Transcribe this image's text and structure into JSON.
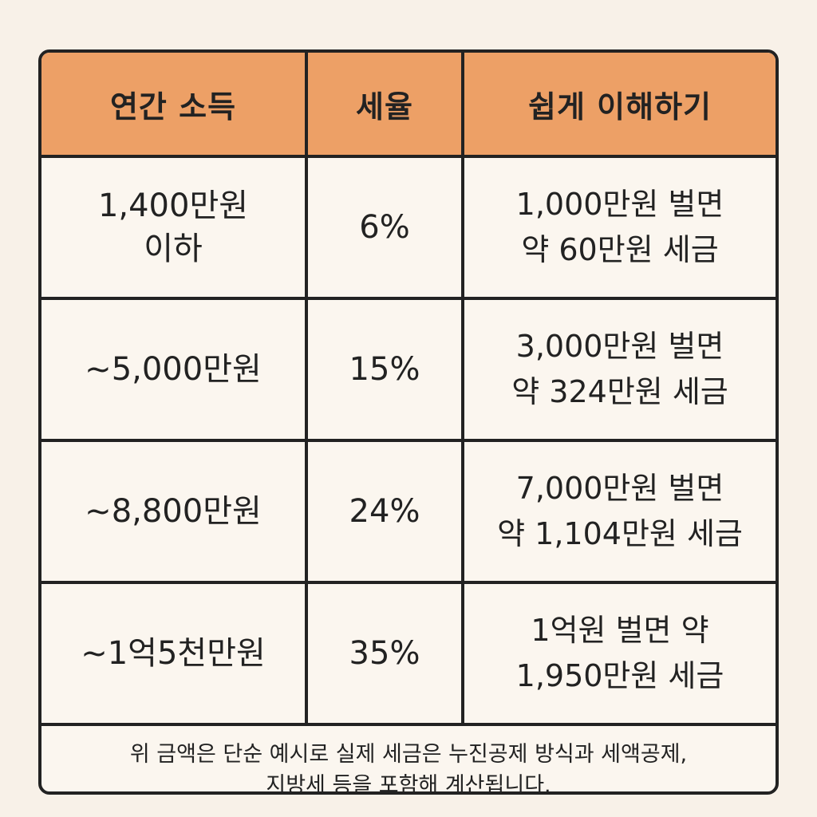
{
  "table": {
    "headers": [
      "연간 소득",
      "세율",
      "쉽게 이해하기"
    ],
    "rows": [
      {
        "income": "1,400만원\n이하",
        "rate": "6%",
        "explain": "1,000만원 벌면\n약 60만원 세금"
      },
      {
        "income": "~5,000만원",
        "rate": "15%",
        "explain": "3,000만원 벌면\n약 324만원 세금"
      },
      {
        "income": "~8,800만원",
        "rate": "24%",
        "explain": "7,000만원 벌면\n약 1,104만원 세금"
      },
      {
        "income": "~1억5천만원",
        "rate": "35%",
        "explain": "1억원 벌면 약\n1,950만원 세금"
      }
    ],
    "footnote": "위 금액은 단순 예시로 실제 세금은 누진공제 방식과 세액공제,\n지방세 등을 포함해 계산됩니다."
  },
  "colors": {
    "background": "#f8f1e8",
    "header": "#eda066",
    "cell": "#fbf6ef",
    "border": "#222222"
  }
}
